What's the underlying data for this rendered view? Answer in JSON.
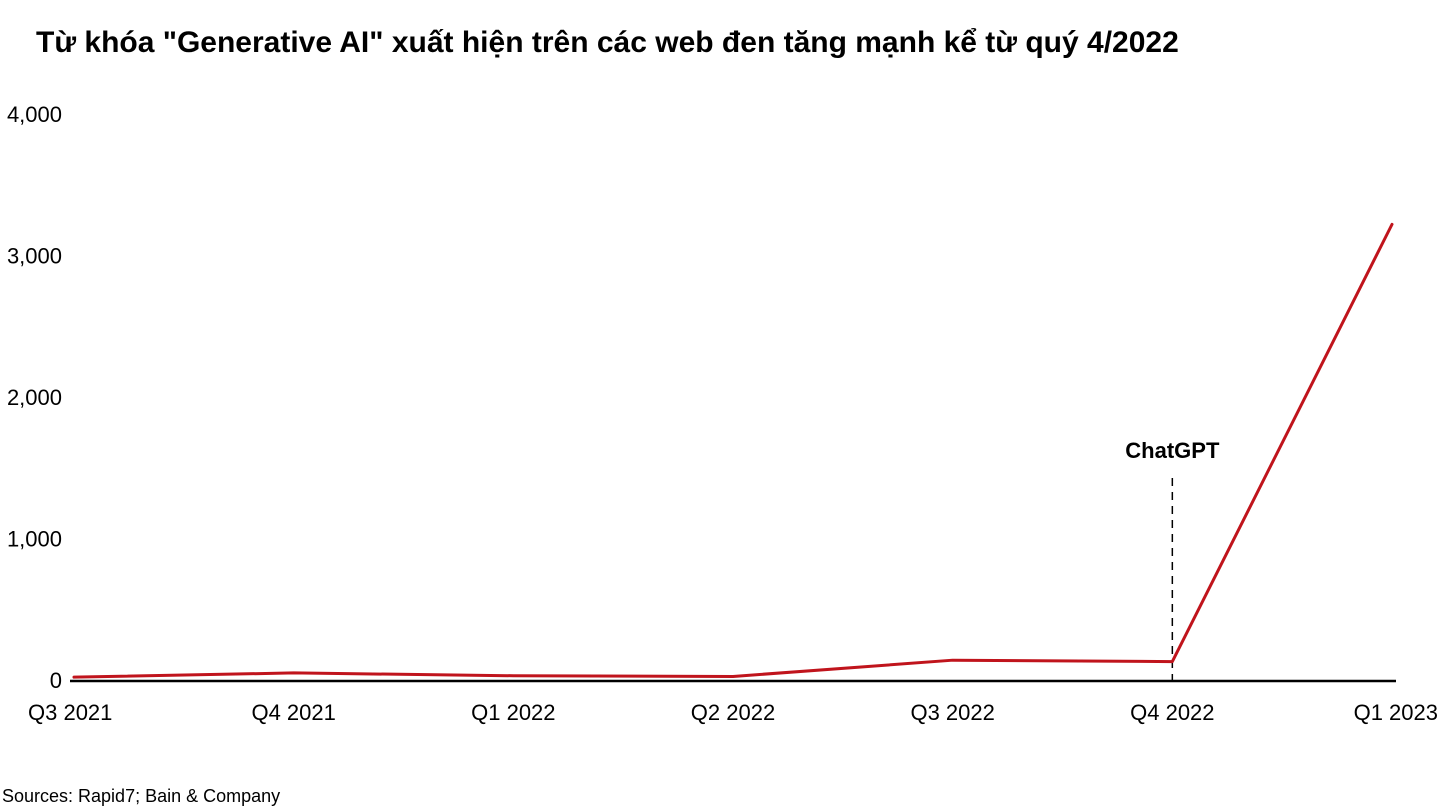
{
  "chart_data": {
    "type": "line",
    "title": "Từ khóa \"Generative AI\" xuất hiện trên các web đen tăng mạnh kể từ quý 4/2022",
    "categories": [
      "Q3 2021",
      "Q4 2021",
      "Q1 2022",
      "Q2 2022",
      "Q3 2022",
      "Q4 2022",
      "Q1 2023"
    ],
    "series": [
      {
        "values": [
          20,
          50,
          30,
          25,
          140,
          130,
          3220
        ]
      }
    ],
    "ylim": [
      0,
      4000
    ],
    "yticks": [
      0,
      1000,
      2000,
      3000,
      4000
    ],
    "ytick_labels": [
      "0",
      "1,000",
      "2,000",
      "3,000",
      "4,000"
    ],
    "xlabel": "",
    "ylabel": "",
    "grid": false,
    "line_color": "#c0141c",
    "annotations": [
      {
        "category": "Q4 2022",
        "label": "ChatGPT",
        "style": "dashed-vertical"
      }
    ],
    "source": "Sources: Rapid7; Bain & Company"
  }
}
